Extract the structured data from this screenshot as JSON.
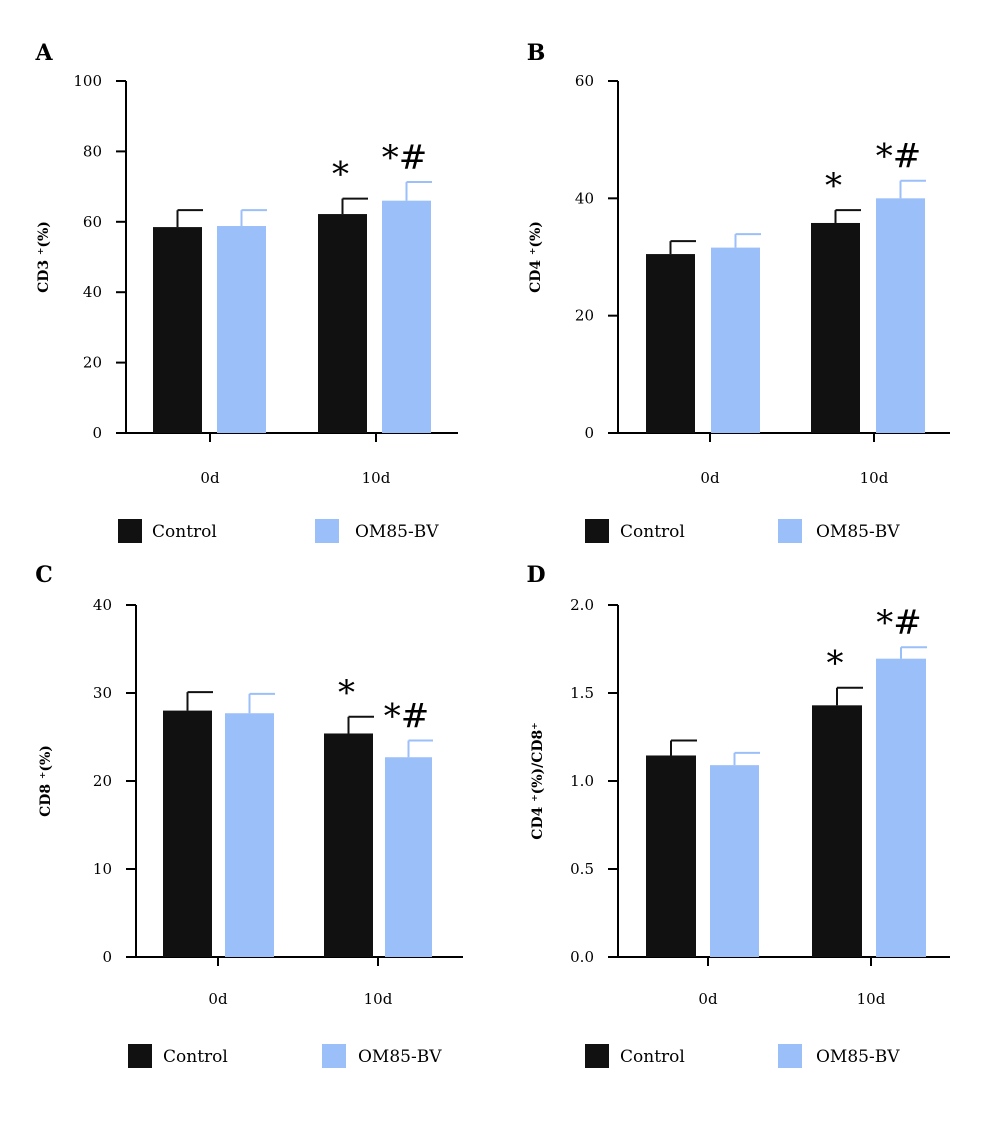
{
  "colors": {
    "control": "#111111",
    "om85": "#9bbff9",
    "axis": "#000000"
  },
  "legend": {
    "control": "Control",
    "om85": "OM85-BV"
  },
  "chart_data": [
    {
      "type": "bar",
      "panel_label": "A",
      "ylabel": "CD3 ⁺(%)",
      "categories": [
        "0d",
        "10d"
      ],
      "ylim": [
        0,
        100
      ],
      "yticks": [
        "0",
        "20",
        "40",
        "60",
        "80",
        "100"
      ],
      "ytick_values": [
        0,
        20,
        40,
        60,
        80,
        100
      ],
      "series": [
        {
          "name": "Control",
          "values": [
            58.5,
            62.2
          ],
          "errors": [
            4.8,
            4.4
          ]
        },
        {
          "name": "OM85-BV",
          "values": [
            58.8,
            66.0
          ],
          "errors": [
            4.5,
            5.3
          ]
        }
      ],
      "annotations": [
        {
          "category": "10d",
          "series": "Control",
          "text": "*"
        },
        {
          "category": "10d",
          "series": "OM85-BV",
          "text": "*#"
        }
      ]
    },
    {
      "type": "bar",
      "panel_label": "B",
      "ylabel": "CD4 ⁺(%)",
      "categories": [
        "0d",
        "10d"
      ],
      "ylim": [
        0,
        60
      ],
      "yticks": [
        "0",
        "20",
        "40",
        "60"
      ],
      "ytick_values": [
        0,
        20,
        40,
        60
      ],
      "series": [
        {
          "name": "Control",
          "values": [
            30.5,
            35.8
          ],
          "errors": [
            2.2,
            2.2
          ]
        },
        {
          "name": "OM85-BV",
          "values": [
            31.6,
            40.0
          ],
          "errors": [
            2.3,
            3.0
          ]
        }
      ],
      "annotations": [
        {
          "category": "10d",
          "series": "Control",
          "text": "*"
        },
        {
          "category": "10d",
          "series": "OM85-BV",
          "text": "*#"
        }
      ]
    },
    {
      "type": "bar",
      "panel_label": "C",
      "ylabel": "CD8 ⁺(%)",
      "categories": [
        "0d",
        "10d"
      ],
      "ylim": [
        0,
        40
      ],
      "yticks": [
        "0",
        "10",
        "20",
        "30",
        "40"
      ],
      "ytick_values": [
        0,
        10,
        20,
        30,
        40
      ],
      "series": [
        {
          "name": "Control",
          "values": [
            28.0,
            25.4
          ],
          "errors": [
            2.1,
            1.9
          ]
        },
        {
          "name": "OM85-BV",
          "values": [
            27.7,
            22.7
          ],
          "errors": [
            2.2,
            1.9
          ]
        }
      ],
      "annotations": [
        {
          "category": "10d",
          "series": "Control",
          "text": "*"
        },
        {
          "category": "10d",
          "series": "OM85-BV",
          "text": "*#"
        }
      ]
    },
    {
      "type": "bar",
      "panel_label": "D",
      "ylabel": "CD4 ⁺(%)/CD8⁺",
      "categories": [
        "0d",
        "10d"
      ],
      "ylim": [
        0,
        2.0
      ],
      "yticks": [
        "0.0",
        "0.5",
        "1.0",
        "1.5",
        "2.0"
      ],
      "ytick_values": [
        0,
        0.5,
        1.0,
        1.5,
        2.0
      ],
      "series": [
        {
          "name": "Control",
          "values": [
            1.145,
            1.43
          ],
          "errors": [
            0.085,
            0.1
          ]
        },
        {
          "name": "OM85-BV",
          "values": [
            1.09,
            1.695
          ],
          "errors": [
            0.07,
            0.065
          ]
        }
      ],
      "annotations": [
        {
          "category": "10d",
          "series": "Control",
          "text": "*"
        },
        {
          "category": "10d",
          "series": "OM85-BV",
          "text": "*#"
        }
      ]
    }
  ]
}
